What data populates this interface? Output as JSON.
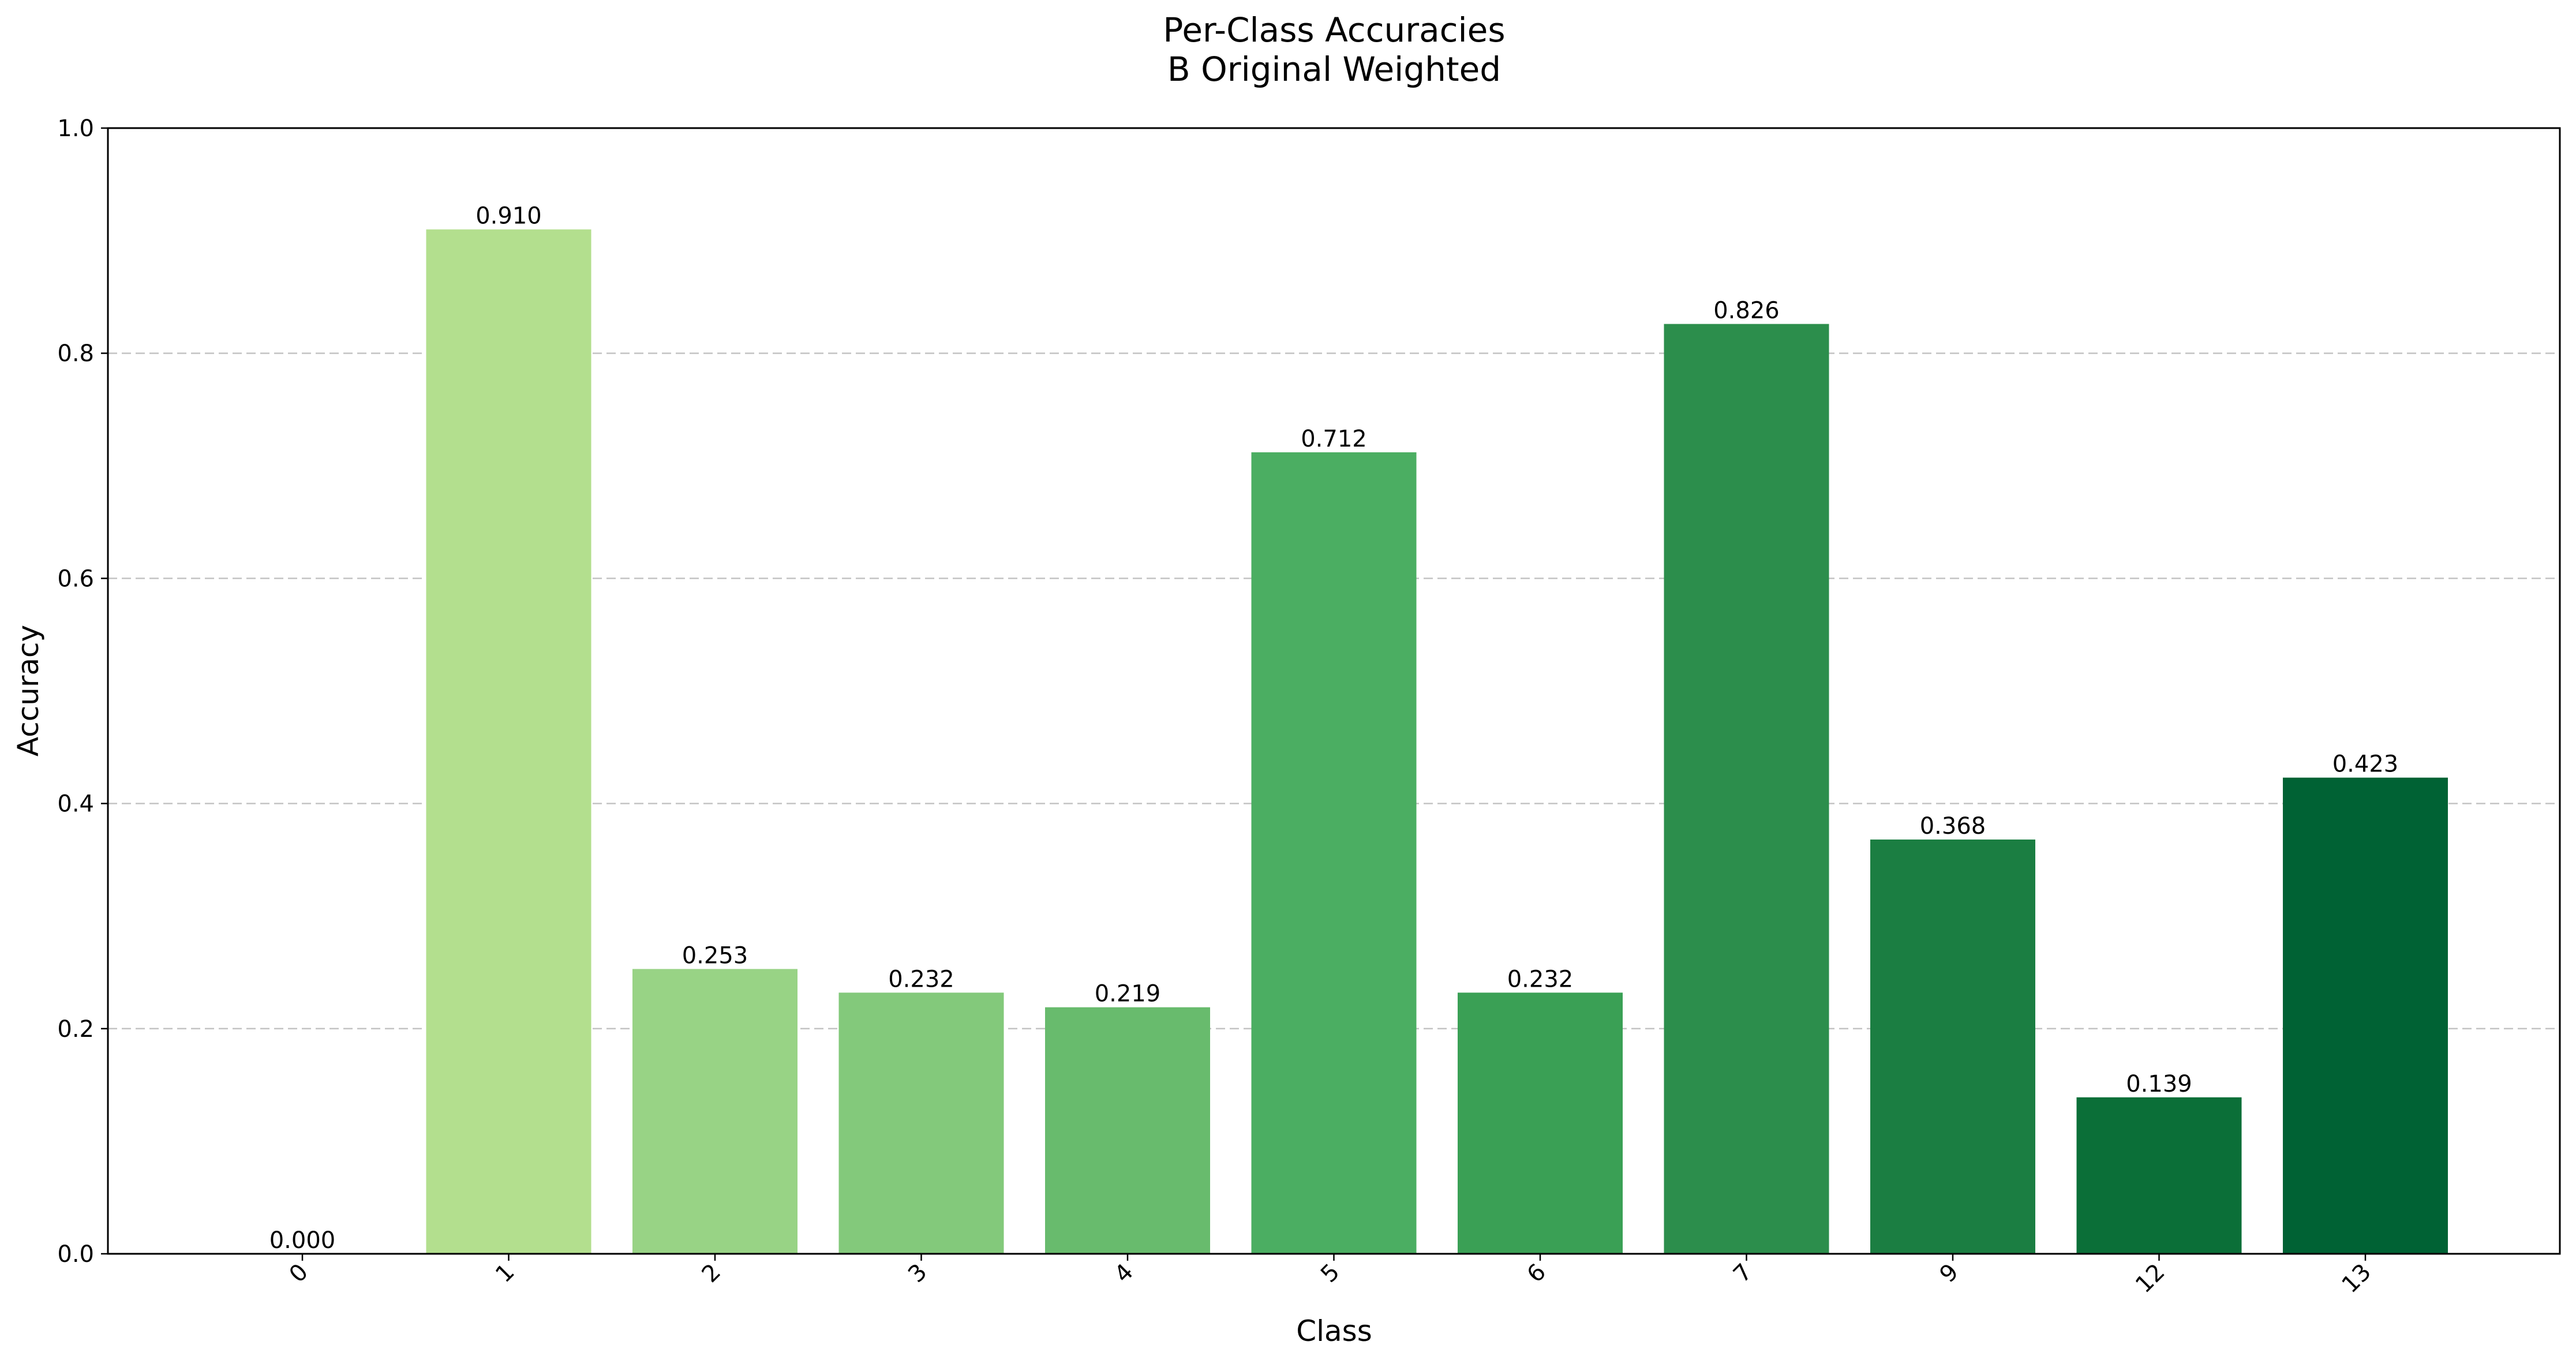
{
  "chart_data": {
    "type": "bar",
    "title": "Per-Class Accuracies",
    "subtitle": "B Original Weighted",
    "xlabel": "Class",
    "ylabel": "Accuracy",
    "ylim": [
      0,
      1.0
    ],
    "yticks": [
      "0.0",
      "0.2",
      "0.4",
      "0.6",
      "0.8",
      "1.0"
    ],
    "grid": "y-dashed",
    "categories": [
      "0",
      "1",
      "2",
      "3",
      "4",
      "5",
      "6",
      "7",
      "9",
      "12",
      "13"
    ],
    "values": [
      0.0,
      0.91,
      0.253,
      0.232,
      0.219,
      0.712,
      0.232,
      0.826,
      0.368,
      0.139,
      0.423
    ],
    "value_labels": [
      "0.000",
      "0.910",
      "0.253",
      "0.232",
      "0.219",
      "0.712",
      "0.232",
      "0.826",
      "0.368",
      "0.139",
      "0.423"
    ],
    "colors": [
      "#f7fcb9",
      "#b3df8e",
      "#98d385",
      "#83c97b",
      "#68bb6d",
      "#4bae62",
      "#3aa055",
      "#2c8e4c",
      "#1b7e42",
      "#0b6f38",
      "#006234"
    ]
  }
}
